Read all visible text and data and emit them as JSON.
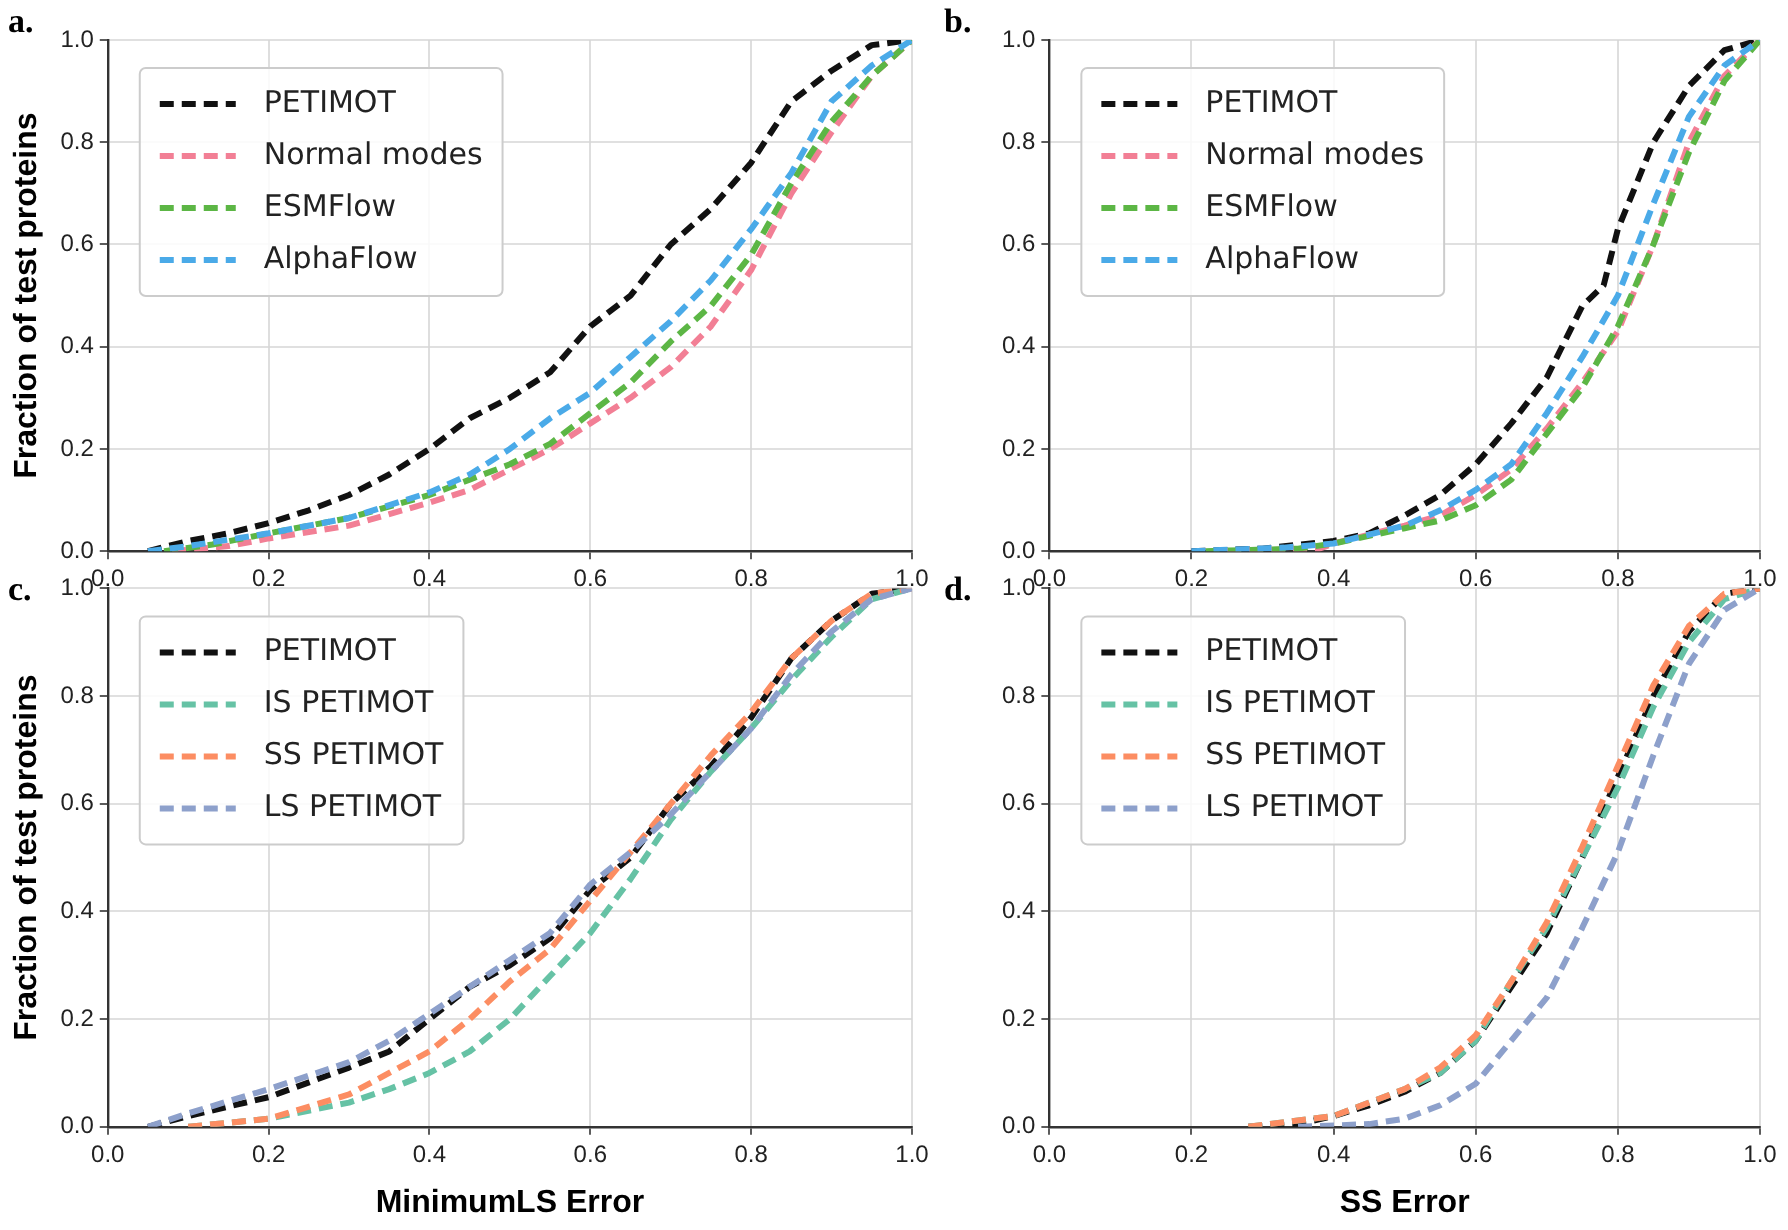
{
  "chart_data": [
    {
      "type": "line",
      "title": "a.",
      "ylabel": "Fraction of test proteins",
      "xlim": [
        0,
        1
      ],
      "ylim": [
        0,
        1
      ],
      "xticks": [
        {
          "value": 0,
          "label": "0.0"
        },
        {
          "value": 0.2,
          "label": "0.2"
        },
        {
          "value": 0.4,
          "label": "0.4"
        },
        {
          "value": 0.6,
          "label": "0.6"
        },
        {
          "value": 0.8,
          "label": "0.8"
        },
        {
          "value": 1,
          "label": "1.0"
        }
      ],
      "yticks": [
        {
          "value": 0,
          "label": "0.0"
        },
        {
          "value": 0.2,
          "label": "0.2"
        },
        {
          "value": 0.4,
          "label": "0.4"
        },
        {
          "value": 0.6,
          "label": "0.6"
        },
        {
          "value": 0.8,
          "label": "0.8"
        },
        {
          "value": 1,
          "label": "1.0"
        }
      ],
      "grid": true,
      "legend": "top left",
      "line_style": "dashed",
      "marker": "none",
      "series": [
        {
          "name": "PETIMOT",
          "color": "#111111",
          "x": [
            0.05,
            0.1,
            0.15,
            0.2,
            0.25,
            0.3,
            0.35,
            0.4,
            0.45,
            0.5,
            0.55,
            0.6,
            0.65,
            0.7,
            0.75,
            0.8,
            0.85,
            0.9,
            0.95,
            1.0
          ],
          "values": [
            0,
            0.02,
            0.035,
            0.055,
            0.08,
            0.11,
            0.15,
            0.2,
            0.26,
            0.3,
            0.35,
            0.44,
            0.5,
            0.6,
            0.67,
            0.76,
            0.88,
            0.94,
            0.99,
            1.0
          ]
        },
        {
          "name": "Normal modes",
          "color": "#f27f95",
          "x": [
            0.08,
            0.15,
            0.2,
            0.3,
            0.4,
            0.45,
            0.5,
            0.55,
            0.6,
            0.65,
            0.7,
            0.75,
            0.8,
            0.85,
            0.9,
            0.95,
            1.0
          ],
          "values": [
            0,
            0.01,
            0.025,
            0.05,
            0.095,
            0.12,
            0.16,
            0.2,
            0.25,
            0.3,
            0.36,
            0.44,
            0.55,
            0.7,
            0.82,
            0.93,
            1.0
          ]
        },
        {
          "name": "ESMFlow",
          "color": "#5cb645",
          "x": [
            0.07,
            0.13,
            0.2,
            0.3,
            0.4,
            0.45,
            0.5,
            0.55,
            0.6,
            0.65,
            0.7,
            0.75,
            0.8,
            0.85,
            0.9,
            0.95,
            1.0
          ],
          "values": [
            0,
            0.013,
            0.035,
            0.065,
            0.11,
            0.14,
            0.17,
            0.21,
            0.27,
            0.33,
            0.41,
            0.48,
            0.58,
            0.72,
            0.84,
            0.93,
            1.0
          ]
        },
        {
          "name": "AlphaFlow",
          "color": "#4aaae8",
          "x": [
            0.05,
            0.1,
            0.2,
            0.3,
            0.4,
            0.45,
            0.5,
            0.55,
            0.6,
            0.65,
            0.7,
            0.75,
            0.8,
            0.85,
            0.9,
            0.95,
            1.0
          ],
          "values": [
            0,
            0.01,
            0.035,
            0.065,
            0.115,
            0.15,
            0.2,
            0.26,
            0.31,
            0.38,
            0.45,
            0.53,
            0.63,
            0.74,
            0.88,
            0.95,
            1.0
          ]
        }
      ]
    },
    {
      "type": "line",
      "title": "b.",
      "xlim": [
        0,
        1
      ],
      "ylim": [
        0,
        1
      ],
      "xticks": [
        {
          "value": 0,
          "label": "0.0"
        },
        {
          "value": 0.2,
          "label": "0.2"
        },
        {
          "value": 0.4,
          "label": "0.4"
        },
        {
          "value": 0.6,
          "label": "0.6"
        },
        {
          "value": 0.8,
          "label": "0.8"
        },
        {
          "value": 1,
          "label": "1.0"
        }
      ],
      "yticks": [
        {
          "value": 0,
          "label": "0.0"
        },
        {
          "value": 0.2,
          "label": "0.2"
        },
        {
          "value": 0.4,
          "label": "0.4"
        },
        {
          "value": 0.6,
          "label": "0.6"
        },
        {
          "value": 0.8,
          "label": "0.8"
        },
        {
          "value": 1,
          "label": "1.0"
        }
      ],
      "grid": true,
      "legend": "top left",
      "line_style": "dashed",
      "marker": "none",
      "series": [
        {
          "name": "PETIMOT",
          "color": "#111111",
          "x": [
            0.2,
            0.3,
            0.4,
            0.45,
            0.5,
            0.55,
            0.6,
            0.65,
            0.7,
            0.75,
            0.78,
            0.8,
            0.85,
            0.9,
            0.95,
            1.0
          ],
          "values": [
            0,
            0.005,
            0.02,
            0.035,
            0.07,
            0.11,
            0.17,
            0.25,
            0.34,
            0.48,
            0.52,
            0.63,
            0.8,
            0.91,
            0.98,
            1.0
          ]
        },
        {
          "name": "Normal modes",
          "color": "#f27f95",
          "x": [
            0.25,
            0.38,
            0.4,
            0.5,
            0.55,
            0.6,
            0.65,
            0.7,
            0.75,
            0.8,
            0.85,
            0.9,
            0.95,
            1.0
          ],
          "values": [
            0,
            0.005,
            0.015,
            0.05,
            0.07,
            0.11,
            0.16,
            0.24,
            0.33,
            0.43,
            0.6,
            0.8,
            0.93,
            1.0
          ]
        },
        {
          "name": "ESMFlow",
          "color": "#5cb645",
          "x": [
            0.22,
            0.35,
            0.4,
            0.5,
            0.55,
            0.6,
            0.65,
            0.7,
            0.75,
            0.8,
            0.85,
            0.9,
            0.95,
            1.0
          ],
          "values": [
            0,
            0.005,
            0.015,
            0.045,
            0.06,
            0.09,
            0.14,
            0.23,
            0.32,
            0.44,
            0.6,
            0.78,
            0.92,
            1.0
          ]
        },
        {
          "name": "AlphaFlow",
          "color": "#4aaae8",
          "x": [
            0.2,
            0.33,
            0.4,
            0.5,
            0.55,
            0.6,
            0.65,
            0.7,
            0.75,
            0.8,
            0.85,
            0.9,
            0.95,
            1.0
          ],
          "values": [
            0,
            0.007,
            0.015,
            0.05,
            0.08,
            0.12,
            0.17,
            0.27,
            0.38,
            0.5,
            0.68,
            0.85,
            0.95,
            1.0
          ]
        }
      ]
    },
    {
      "type": "line",
      "title": "c.",
      "xlabel": "MinimumLS Error",
      "ylabel": "Fraction of test proteins",
      "xlim": [
        0,
        1
      ],
      "ylim": [
        0,
        1
      ],
      "xticks": [
        {
          "value": 0,
          "label": "0.0"
        },
        {
          "value": 0.2,
          "label": "0.2"
        },
        {
          "value": 0.4,
          "label": "0.4"
        },
        {
          "value": 0.6,
          "label": "0.6"
        },
        {
          "value": 0.8,
          "label": "0.8"
        },
        {
          "value": 1,
          "label": "1.0"
        }
      ],
      "yticks": [
        {
          "value": 0,
          "label": "0.0"
        },
        {
          "value": 0.2,
          "label": "0.2"
        },
        {
          "value": 0.4,
          "label": "0.4"
        },
        {
          "value": 0.6,
          "label": "0.6"
        },
        {
          "value": 0.8,
          "label": "0.8"
        },
        {
          "value": 1,
          "label": "1.0"
        }
      ],
      "grid": true,
      "legend": "top left",
      "line_style": "dashed",
      "marker": "none",
      "series": [
        {
          "name": "PETIMOT",
          "color": "#111111",
          "x": [
            0.05,
            0.1,
            0.2,
            0.3,
            0.35,
            0.4,
            0.45,
            0.5,
            0.55,
            0.6,
            0.65,
            0.7,
            0.75,
            0.8,
            0.85,
            0.9,
            0.95,
            1.0
          ],
          "values": [
            0,
            0.02,
            0.055,
            0.11,
            0.14,
            0.2,
            0.26,
            0.3,
            0.35,
            0.44,
            0.5,
            0.6,
            0.67,
            0.76,
            0.87,
            0.94,
            0.99,
            1.0
          ]
        },
        {
          "name": "IS PETIMOT",
          "color": "#66c2a5",
          "x": [
            0.1,
            0.2,
            0.3,
            0.35,
            0.4,
            0.45,
            0.5,
            0.55,
            0.6,
            0.65,
            0.7,
            0.75,
            0.8,
            0.85,
            0.9,
            0.95,
            1.0
          ],
          "values": [
            0,
            0.015,
            0.045,
            0.07,
            0.1,
            0.14,
            0.2,
            0.28,
            0.36,
            0.46,
            0.57,
            0.66,
            0.74,
            0.83,
            0.91,
            0.98,
            1.0
          ]
        },
        {
          "name": "SS PETIMOT",
          "color": "#fc8d62",
          "x": [
            0.1,
            0.2,
            0.3,
            0.35,
            0.4,
            0.45,
            0.5,
            0.55,
            0.6,
            0.65,
            0.7,
            0.75,
            0.8,
            0.85,
            0.9,
            0.95,
            1.0
          ],
          "values": [
            0,
            0.015,
            0.06,
            0.1,
            0.14,
            0.2,
            0.27,
            0.33,
            0.42,
            0.51,
            0.6,
            0.69,
            0.77,
            0.87,
            0.94,
            0.99,
            1.0
          ]
        },
        {
          "name": "LS PETIMOT",
          "color": "#8da0cb",
          "x": [
            0.05,
            0.1,
            0.2,
            0.3,
            0.35,
            0.4,
            0.45,
            0.5,
            0.55,
            0.6,
            0.65,
            0.7,
            0.75,
            0.8,
            0.85,
            0.9,
            0.95,
            1.0
          ],
          "values": [
            0,
            0.025,
            0.07,
            0.12,
            0.16,
            0.21,
            0.26,
            0.31,
            0.36,
            0.45,
            0.51,
            0.58,
            0.66,
            0.74,
            0.84,
            0.92,
            0.98,
            1.0
          ]
        }
      ]
    },
    {
      "type": "line",
      "title": "d.",
      "xlabel": "SS Error",
      "xlim": [
        0,
        1
      ],
      "ylim": [
        0,
        1
      ],
      "xticks": [
        {
          "value": 0,
          "label": "0.0"
        },
        {
          "value": 0.2,
          "label": "0.2"
        },
        {
          "value": 0.4,
          "label": "0.4"
        },
        {
          "value": 0.6,
          "label": "0.6"
        },
        {
          "value": 0.8,
          "label": "0.8"
        },
        {
          "value": 1,
          "label": "1.0"
        }
      ],
      "yticks": [
        {
          "value": 0,
          "label": "0.0"
        },
        {
          "value": 0.2,
          "label": "0.2"
        },
        {
          "value": 0.4,
          "label": "0.4"
        },
        {
          "value": 0.6,
          "label": "0.6"
        },
        {
          "value": 0.8,
          "label": "0.8"
        },
        {
          "value": 1,
          "label": "1.0"
        }
      ],
      "grid": true,
      "legend": "top left",
      "line_style": "dashed",
      "marker": "none",
      "series": [
        {
          "name": "PETIMOT",
          "color": "#111111",
          "x": [
            0.28,
            0.35,
            0.4,
            0.45,
            0.5,
            0.55,
            0.6,
            0.65,
            0.7,
            0.75,
            0.8,
            0.85,
            0.9,
            0.95,
            1.0
          ],
          "values": [
            0,
            0.005,
            0.02,
            0.04,
            0.065,
            0.1,
            0.16,
            0.26,
            0.36,
            0.5,
            0.65,
            0.8,
            0.92,
            0.99,
            1.0
          ]
        },
        {
          "name": "IS PETIMOT",
          "color": "#66c2a5",
          "x": [
            0.28,
            0.4,
            0.5,
            0.55,
            0.6,
            0.65,
            0.7,
            0.75,
            0.8,
            0.85,
            0.9,
            0.95,
            1.0
          ],
          "values": [
            0,
            0.02,
            0.07,
            0.1,
            0.16,
            0.27,
            0.37,
            0.5,
            0.63,
            0.78,
            0.9,
            0.98,
            1.0
          ]
        },
        {
          "name": "SS PETIMOT",
          "color": "#fc8d62",
          "x": [
            0.28,
            0.4,
            0.5,
            0.55,
            0.6,
            0.65,
            0.7,
            0.75,
            0.8,
            0.85,
            0.9,
            0.95,
            1.0
          ],
          "values": [
            0,
            0.02,
            0.07,
            0.11,
            0.17,
            0.27,
            0.38,
            0.52,
            0.67,
            0.82,
            0.93,
            0.99,
            1.0
          ]
        },
        {
          "name": "LS PETIMOT",
          "color": "#8da0cb",
          "x": [
            0.35,
            0.45,
            0.5,
            0.55,
            0.6,
            0.65,
            0.7,
            0.75,
            0.8,
            0.85,
            0.9,
            0.95,
            1.0
          ],
          "values": [
            0,
            0.005,
            0.015,
            0.04,
            0.08,
            0.16,
            0.24,
            0.37,
            0.51,
            0.69,
            0.86,
            0.96,
            1.0
          ]
        }
      ]
    }
  ]
}
